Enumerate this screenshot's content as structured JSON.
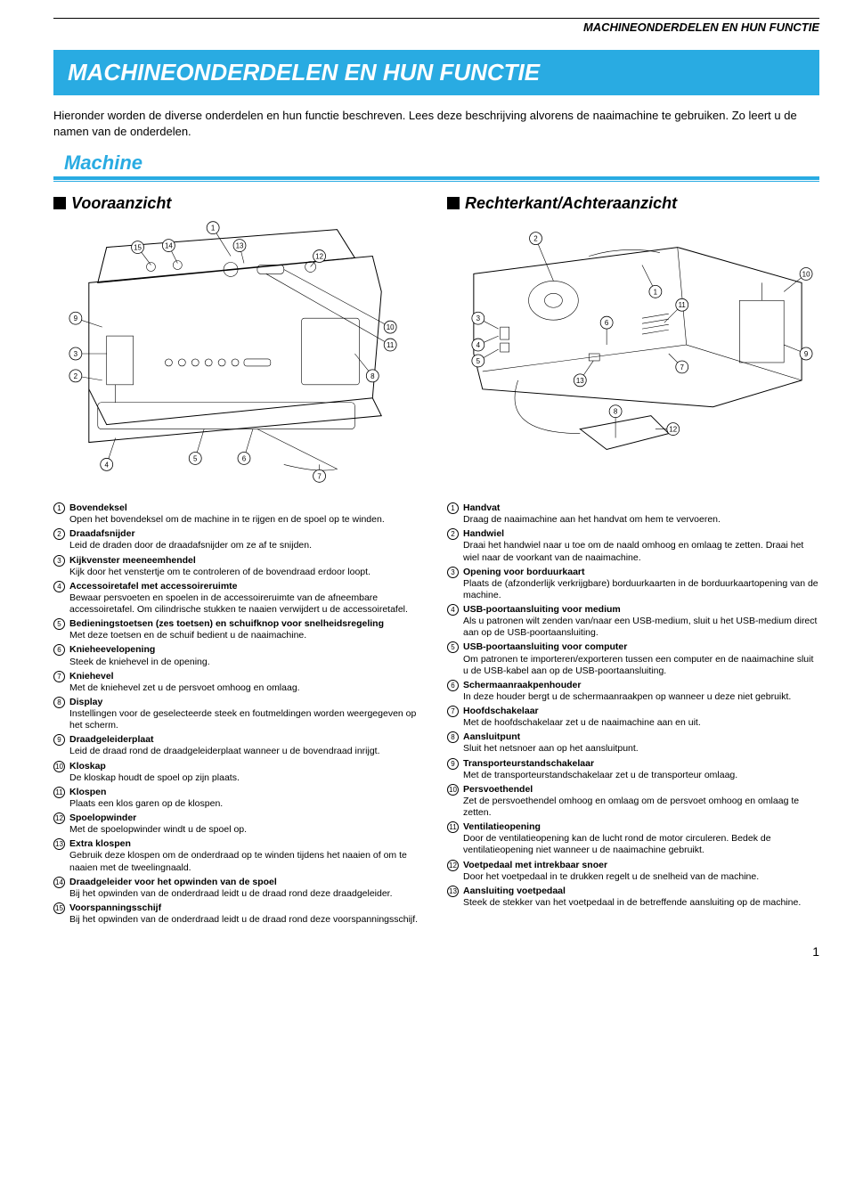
{
  "header": "MACHINEONDERDELEN EN HUN FUNCTIE",
  "title": "MACHINEONDERDELEN EN HUN FUNCTIE",
  "intro": "Hieronder worden de diverse onderdelen en hun functie beschreven. Lees deze beschrijving alvorens de naaimachine te gebruiken. Zo leert u de namen van de onderdelen.",
  "section": "Machine",
  "left_heading": "Vooraanzicht",
  "right_heading": "Rechterkant/Achteraanzicht",
  "page_number": "1",
  "colors": {
    "accent": "#29abe2",
    "text": "#000000",
    "bg": "#ffffff"
  },
  "left_list": [
    {
      "n": "1",
      "term": "Bovendeksel",
      "desc": "Open het bovendeksel om de machine in te rijgen en de spoel op te winden."
    },
    {
      "n": "2",
      "term": "Draadafsnijder",
      "desc": "Leid de draden door de draadafsnijder om ze af te snijden."
    },
    {
      "n": "3",
      "term": "Kijkvenster meeneemhendel",
      "desc": "Kijk door het venstertje om te controleren of de bovendraad erdoor loopt."
    },
    {
      "n": "4",
      "term": "Accessoiretafel met accessoireruimte",
      "desc": "Bewaar persvoeten en spoelen in de accessoireruimte van de afneembare accessoiretafel. Om cilindrische stukken te naaien verwijdert u de accessoiretafel."
    },
    {
      "n": "5",
      "term": "Bedieningstoetsen (zes toetsen) en schuifknop voor snelheidsregeling",
      "desc": "Met deze toetsen en de schuif bedient u de naaimachine."
    },
    {
      "n": "6",
      "term": "Knieheevelopening",
      "desc": "Steek de kniehevel in de opening."
    },
    {
      "n": "7",
      "term": "Kniehevel",
      "desc": "Met de kniehevel zet u de persvoet omhoog en omlaag."
    },
    {
      "n": "8",
      "term": "Display",
      "desc": "Instellingen voor de geselecteerde steek en foutmeldingen worden weergegeven op het scherm."
    },
    {
      "n": "9",
      "term": "Draadgeleiderplaat",
      "desc": "Leid de draad rond de draadgeleiderplaat wanneer u de bovendraad inrijgt."
    },
    {
      "n": "10",
      "term": "Kloskap",
      "desc": "De kloskap houdt de spoel op zijn plaats."
    },
    {
      "n": "11",
      "term": "Klospen",
      "desc": "Plaats een klos garen op de klospen."
    },
    {
      "n": "12",
      "term": "Spoelopwinder",
      "desc": "Met de spoelopwinder windt u de spoel op."
    },
    {
      "n": "13",
      "term": "Extra klospen",
      "desc": "Gebruik deze klospen om de onderdraad op te winden tijdens het naaien of om te naaien met de tweelingnaald."
    },
    {
      "n": "14",
      "term": "Draadgeleider voor het opwinden van de spoel",
      "desc": "Bij het opwinden van de onderdraad leidt u de draad rond deze draadgeleider."
    },
    {
      "n": "15",
      "term": "Voorspanningsschijf",
      "desc": "Bij het opwinden van de onderdraad leidt u de draad rond deze voorspanningsschijf."
    }
  ],
  "right_list": [
    {
      "n": "1",
      "term": "Handvat",
      "desc": "Draag de naaimachine aan het handvat om hem te vervoeren."
    },
    {
      "n": "2",
      "term": "Handwiel",
      "desc": "Draai het handwiel naar u toe om de naald omhoog en omlaag te zetten. Draai het wiel naar de voorkant van de naaimachine."
    },
    {
      "n": "3",
      "term": "Opening voor borduurkaart",
      "desc": "Plaats de (afzonderlijk verkrijgbare) borduurkaarten in de borduurkaartopening van de machine."
    },
    {
      "n": "4",
      "term": "USB-poortaansluiting voor medium",
      "desc": "Als u patronen wilt zenden van/naar een USB-medium, sluit u het USB-medium direct aan op de USB-poortaansluiting."
    },
    {
      "n": "5",
      "term": "USB-poortaansluiting voor computer",
      "desc": "Om patronen te importeren/exporteren tussen een computer en de naaimachine sluit u de USB-kabel aan op de USB-poortaansluiting."
    },
    {
      "n": "6",
      "term": "Schermaanraakpenhouder",
      "desc": "In deze houder bergt u de schermaanraakpen op wanneer u deze niet gebruikt."
    },
    {
      "n": "7",
      "term": "Hoofdschakelaar",
      "desc": "Met de hoofdschakelaar zet u de naaimachine aan en uit."
    },
    {
      "n": "8",
      "term": "Aansluitpunt",
      "desc": "Sluit het netsnoer aan op het aansluitpunt."
    },
    {
      "n": "9",
      "term": "Transporteurstandschakelaar",
      "desc": "Met de transporteurstandschakelaar zet u de transporteur omlaag."
    },
    {
      "n": "10",
      "term": "Persvoethendel",
      "desc": "Zet de persvoethendel omhoog en omlaag om de persvoet omhoog en omlaag te zetten."
    },
    {
      "n": "11",
      "term": "Ventilatieopening",
      "desc": "Door de ventilatieopening kan de lucht rond de motor circuleren. Bedek de ventilatieopening niet wanneer u de naaimachine gebruikt."
    },
    {
      "n": "12",
      "term": "Voetpedaal met intrekbaar snoer",
      "desc": "Door het voetpedaal in te drukken regelt u de snelheid van de machine."
    },
    {
      "n": "13",
      "term": "Aansluiting voetpedaal",
      "desc": "Steek de stekker van het voetpedaal in de betreffende aansluiting op de machine."
    }
  ],
  "diagram_left": {
    "type": "technical-line-drawing",
    "callouts": [
      "1",
      "2",
      "3",
      "4",
      "5",
      "6",
      "7",
      "8",
      "9",
      "10",
      "11",
      "12",
      "13",
      "14",
      "15"
    ]
  },
  "diagram_right": {
    "type": "technical-line-drawing",
    "callouts": [
      "1",
      "2",
      "3",
      "4",
      "5",
      "6",
      "7",
      "8",
      "9",
      "10",
      "11",
      "12",
      "13"
    ]
  }
}
